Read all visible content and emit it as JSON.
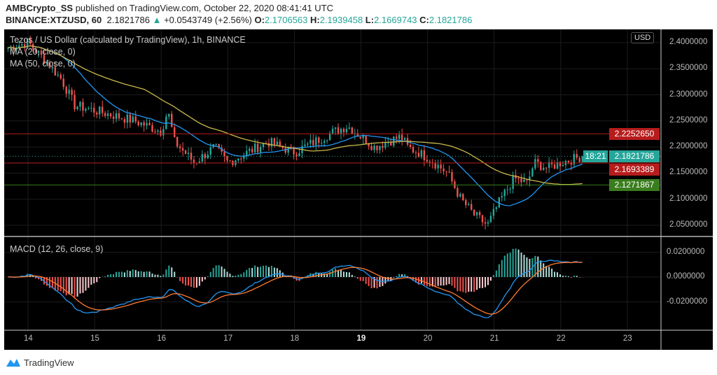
{
  "header": {
    "author": "AMBCrypto_SS",
    "published": "published on TradingView.com, October 22, 2020 08:41:41 UTC",
    "symbol": "BINANCE:XTZUSD, 60",
    "last": "2.1821786",
    "change": "+0.0543749 (+2.56%)",
    "o_label": "O:",
    "o": "2.1706563",
    "h_label": "H:",
    "h": "2.1939458",
    "l_label": "L:",
    "l": "2.1669743",
    "c_label": "C:",
    "c": "2.1821786"
  },
  "legend": {
    "title": "Tezos / US Dollar (calculated by TradingView), 1h, BINANCE",
    "ma20": "MA (20, close, 0)",
    "ma50": "MA (50, close, 0)",
    "macd": "MACD (12, 26, close, 9)"
  },
  "price_axis": {
    "currency": "USD",
    "ticks": [
      "2.4000000",
      "2.3500000",
      "2.3000000",
      "2.2500000",
      "2.2000000",
      "2.1500000",
      "2.1000000",
      "2.0500000"
    ]
  },
  "macd_axis": {
    "ticks": [
      "0.0200000",
      "0.0000000",
      "-0.0200000"
    ]
  },
  "price_labels": {
    "resistance": "2.2252650",
    "current": "2.1821786",
    "countdown": "18:21",
    "support1": "2.1693389",
    "support2": "2.1271867"
  },
  "time_axis": [
    "14",
    "15",
    "16",
    "17",
    "18",
    "19",
    "20",
    "21",
    "22",
    "23"
  ],
  "colors": {
    "up": "#26a69a",
    "down": "#ef5350",
    "ma20": "#2196f3",
    "ma50": "#c9b94a",
    "macd": "#2196f3",
    "signal": "#ff7a30",
    "resistance": "#b71c1c",
    "support": "#3a7d1e",
    "current": "#26a69a"
  },
  "chart_data": {
    "type": "candlestick",
    "x_unit": "day (Oct)",
    "price_path": [
      [
        13.7,
        2.39
      ],
      [
        14.0,
        2.4
      ],
      [
        14.3,
        2.36
      ],
      [
        14.5,
        2.33
      ],
      [
        14.7,
        2.28
      ],
      [
        15.0,
        2.27
      ],
      [
        15.3,
        2.26
      ],
      [
        15.6,
        2.25
      ],
      [
        16.0,
        2.23
      ],
      [
        16.1,
        2.27
      ],
      [
        16.2,
        2.21
      ],
      [
        16.5,
        2.17
      ],
      [
        16.8,
        2.2
      ],
      [
        17.0,
        2.17
      ],
      [
        17.3,
        2.19
      ],
      [
        17.6,
        2.21
      ],
      [
        18.0,
        2.19
      ],
      [
        18.3,
        2.21
      ],
      [
        18.6,
        2.23
      ],
      [
        18.8,
        2.24
      ],
      [
        19.0,
        2.22
      ],
      [
        19.2,
        2.2
      ],
      [
        19.6,
        2.22
      ],
      [
        19.7,
        2.2
      ],
      [
        20.0,
        2.18
      ],
      [
        20.3,
        2.15
      ],
      [
        20.5,
        2.1
      ],
      [
        20.7,
        2.07
      ],
      [
        20.9,
        2.05
      ],
      [
        21.1,
        2.1
      ],
      [
        21.3,
        2.14
      ],
      [
        21.5,
        2.13
      ],
      [
        21.6,
        2.17
      ],
      [
        21.8,
        2.16
      ],
      [
        22.0,
        2.17
      ],
      [
        22.33,
        2.1821786
      ]
    ],
    "hlines": [
      2.225265,
      2.1693389,
      2.1271867
    ],
    "ylim": [
      2.02,
      2.44
    ],
    "macd_ylim": [
      -0.035,
      0.03
    ]
  }
}
